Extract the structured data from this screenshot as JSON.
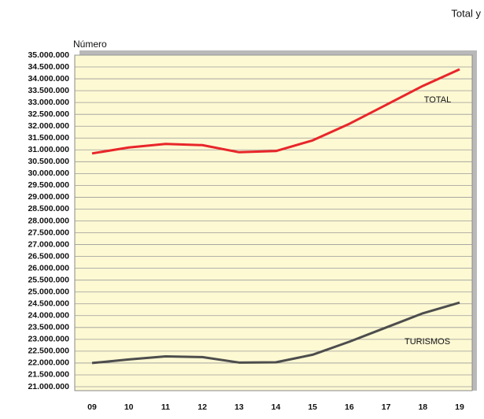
{
  "chart_data": {
    "type": "line",
    "title": "Total y",
    "y_label": "Número",
    "categories": [
      "09",
      "10",
      "11",
      "12",
      "13",
      "14",
      "15",
      "16",
      "17",
      "18",
      "19"
    ],
    "series": [
      {
        "name": "TOTAL",
        "color": "#e8262a",
        "values": [
          30850000,
          31100000,
          31250000,
          31200000,
          30900000,
          30950000,
          31400000,
          32100000,
          32900000,
          33700000,
          34400000
        ]
      },
      {
        "name": "TURISMOS",
        "color": "#4d4d4d",
        "values": [
          22000000,
          22150000,
          22280000,
          22250000,
          22020000,
          22030000,
          22350000,
          22900000,
          23500000,
          24100000,
          24550000
        ]
      }
    ],
    "ylim": [
      21000000,
      35000000
    ],
    "yticks": [
      {
        "value": 21000000,
        "label": "21.000.000"
      },
      {
        "value": 21500000,
        "label": "21.500.000"
      },
      {
        "value": 22000000,
        "label": "22.000.000"
      },
      {
        "value": 22500000,
        "label": "22.500.000"
      },
      {
        "value": 23000000,
        "label": "23.000.000"
      },
      {
        "value": 23500000,
        "label": "23.500.000"
      },
      {
        "value": 24000000,
        "label": "24.000.000"
      },
      {
        "value": 24500000,
        "label": "24.500.000"
      },
      {
        "value": 25000000,
        "label": "25.000.000"
      },
      {
        "value": 25500000,
        "label": "25.500.000"
      },
      {
        "value": 26000000,
        "label": "26.000.000"
      },
      {
        "value": 26500000,
        "label": "26.500.000"
      },
      {
        "value": 27000000,
        "label": "27.000.000"
      },
      {
        "value": 27500000,
        "label": "27.500.000"
      },
      {
        "value": 28000000,
        "label": "28.000.000"
      },
      {
        "value": 28500000,
        "label": "28.500.000"
      },
      {
        "value": 29000000,
        "label": "29.000.000"
      },
      {
        "value": 29500000,
        "label": "29.500.000"
      },
      {
        "value": 30000000,
        "label": "30.000.000"
      },
      {
        "value": 30500000,
        "label": "30.500.000"
      },
      {
        "value": 31000000,
        "label": "31.000.000"
      },
      {
        "value": 31500000,
        "label": "31.500.000"
      },
      {
        "value": 32000000,
        "label": "32.000.000"
      },
      {
        "value": 32500000,
        "label": "32.500.000"
      },
      {
        "value": 33000000,
        "label": "33.000.000"
      },
      {
        "value": 33500000,
        "label": "33.500.000"
      },
      {
        "value": 34000000,
        "label": "34.000.000"
      },
      {
        "value": 34500000,
        "label": "34.500.000"
      },
      {
        "value": 35000000,
        "label": "35.000.000"
      }
    ],
    "grid": true
  }
}
